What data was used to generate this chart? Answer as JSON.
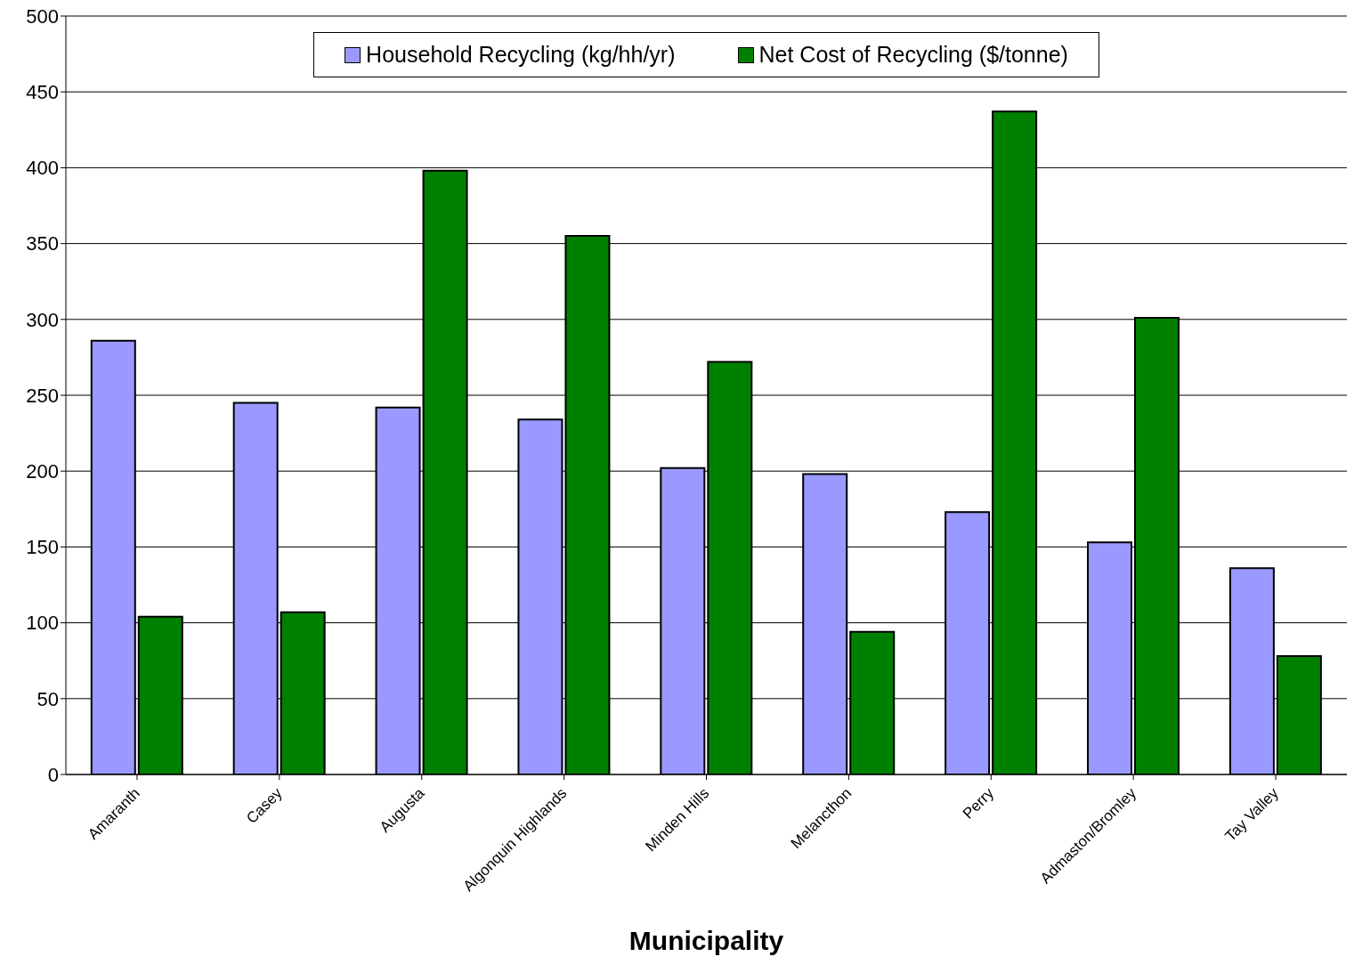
{
  "chart_data": {
    "type": "bar",
    "xlabel": "Municipality",
    "categories": [
      "Amaranth",
      "Casey",
      "Augusta",
      "Algonquin Highlands",
      "Minden Hills",
      "Melancthon",
      "Perry",
      "Admaston/Bromley",
      "Tay Valley"
    ],
    "series": [
      {
        "name": "Household Recycling (kg/hh/yr)",
        "color": "#9999ff",
        "values": [
          286,
          245,
          242,
          234,
          202,
          198,
          173,
          153,
          136
        ]
      },
      {
        "name": "Net Cost of Recycling ($/tonne)",
        "color": "#008000",
        "values": [
          104,
          107,
          398,
          355,
          272,
          94,
          437,
          301,
          78
        ]
      }
    ],
    "ylim": [
      0,
      500
    ],
    "yticks": [
      0,
      50,
      100,
      150,
      200,
      250,
      300,
      350,
      400,
      450,
      500
    ],
    "grid": "y",
    "legend": "top"
  }
}
